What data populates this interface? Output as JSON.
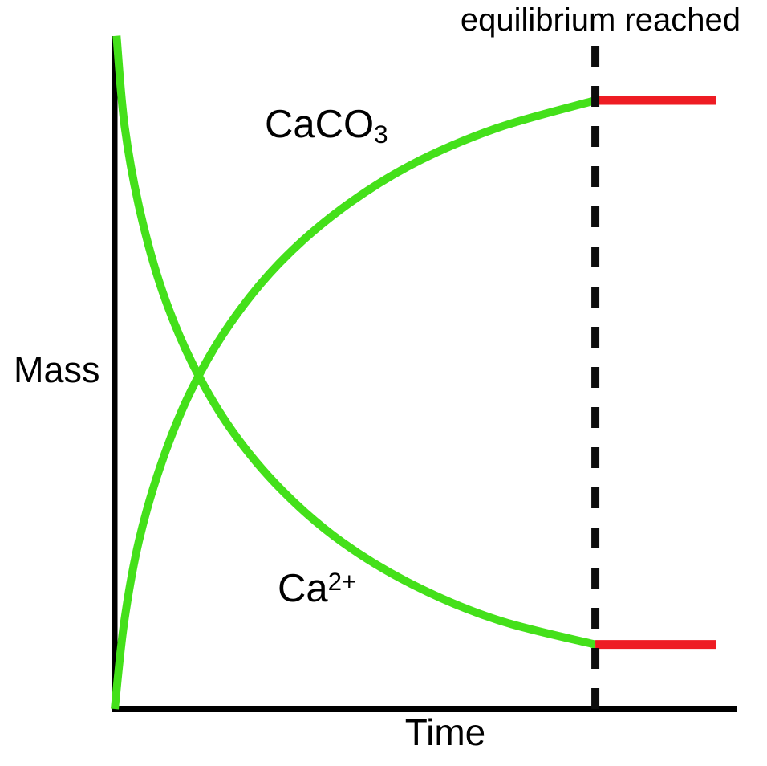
{
  "figure": {
    "background": "#ffffff",
    "text_color": "#000000",
    "axis_color": "#000000",
    "dashed_line_color": "#0d0d0d",
    "curve_color": "#44e01a",
    "equilibrium_line_color": "#ee1c23",
    "labels": {
      "y_axis": "Mass",
      "x_axis": "Time",
      "equilibrium": "equilibrium reached",
      "curve_top": {
        "base": "CaCO",
        "subscript": "3"
      },
      "curve_bottom": {
        "base": "Ca",
        "superscript": "2+"
      }
    }
  },
  "chart_data": {
    "type": "line",
    "title": "",
    "xlabel": "Time",
    "ylabel": "Mass",
    "legend_position": "none",
    "axes": {
      "numeric_ticks": false,
      "grid": false,
      "x_range_norm": [
        0,
        1
      ],
      "y_range_norm": [
        0,
        1.15
      ]
    },
    "equilibrium_x_norm": 0.775,
    "series": [
      {
        "name": "CaCO3",
        "color": "#44e01a",
        "equilibrium_color": "#ee1c23",
        "description": "mass of CaCO3 rises from zero and levels off at equilibrium",
        "points": [
          [
            0.0,
            0.0
          ],
          [
            0.015,
            0.141
          ],
          [
            0.039,
            0.276
          ],
          [
            0.075,
            0.403
          ],
          [
            0.123,
            0.523
          ],
          [
            0.186,
            0.633
          ],
          [
            0.265,
            0.732
          ],
          [
            0.362,
            0.819
          ],
          [
            0.478,
            0.894
          ],
          [
            0.615,
            0.954
          ],
          [
            0.775,
            1.0
          ]
        ],
        "equilibrium_points": [
          [
            0.775,
            1.0
          ],
          [
            0.97,
            1.0
          ]
        ]
      },
      {
        "name": "Ca2+",
        "color": "#44e01a",
        "equilibrium_color": "#ee1c23",
        "description": "mass of Ca2+ falls and levels off at equilibrium",
        "points": [
          [
            0.003,
            1.106
          ],
          [
            0.016,
            0.957
          ],
          [
            0.041,
            0.817
          ],
          [
            0.077,
            0.686
          ],
          [
            0.126,
            0.566
          ],
          [
            0.19,
            0.456
          ],
          [
            0.27,
            0.359
          ],
          [
            0.367,
            0.274
          ],
          [
            0.483,
            0.203
          ],
          [
            0.618,
            0.146
          ],
          [
            0.775,
            0.106
          ]
        ],
        "equilibrium_points": [
          [
            0.775,
            0.106
          ],
          [
            0.97,
            0.106
          ]
        ]
      }
    ],
    "annotations": [
      {
        "type": "vertical_dashed_line",
        "x_norm": 0.775,
        "label": "equilibrium reached"
      }
    ]
  }
}
